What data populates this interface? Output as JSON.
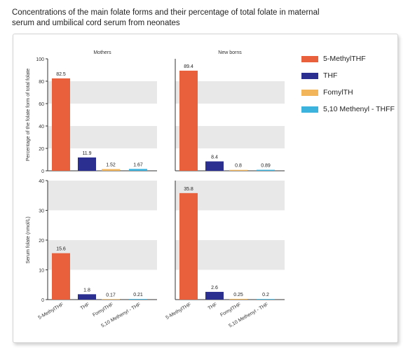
{
  "title": "Concentrations of the main folate forms and their percentage of total folate in maternal serum and umbilical cord serum from neonates",
  "chart_data": [
    {
      "type": "bar",
      "title": "Mothers",
      "ylabel": "Percentage of the folate form of total folate",
      "ylim": [
        0,
        100
      ],
      "yticks": [
        "0",
        "20",
        "40",
        "60",
        "80",
        "100"
      ],
      "categories": [
        "5-MethylTHF",
        "THF",
        "FomylTHF",
        "5,10 Methenyl - THF"
      ],
      "values": [
        82.5,
        11.9,
        1.52,
        1.67
      ],
      "value_labels": [
        "82.5",
        "11.9",
        "1.52",
        "1.67"
      ],
      "category_labels_shown": false
    },
    {
      "type": "bar",
      "title": "New borns",
      "ylim": [
        0,
        100
      ],
      "categories": [
        "5-MethylTHF",
        "THF",
        "FomylTHF",
        "5,10 Methenyl - THF"
      ],
      "values": [
        89.4,
        8.4,
        0.8,
        0.89
      ],
      "value_labels": [
        "89.4",
        "8.4",
        "0.8",
        "0.89"
      ],
      "category_labels_shown": false
    },
    {
      "type": "bar",
      "ylabel": "Serum folate  (nmol/L)",
      "ylim": [
        0,
        40
      ],
      "yticks": [
        "0",
        "10",
        "20",
        "30",
        "40"
      ],
      "categories": [
        "5-MethylTHF",
        "THF",
        "FomylTHF",
        "5,10 Methenyl - THF"
      ],
      "values": [
        15.6,
        1.8,
        0.17,
        0.21
      ],
      "value_labels": [
        "15.6",
        "1.8",
        "0.17",
        "0.21"
      ],
      "category_labels_shown": true
    },
    {
      "type": "bar",
      "ylim": [
        0,
        40
      ],
      "categories": [
        "5-MethylTHF",
        "THF",
        "FomylTHF",
        "5,10 Methenyl - THF"
      ],
      "values": [
        35.8,
        2.6,
        0.25,
        0.2
      ],
      "value_labels": [
        "35.8",
        "2.6",
        "0.25",
        "0.2"
      ],
      "category_labels_shown": true
    }
  ],
  "legend": [
    {
      "label": "5-MethylTHF",
      "color": "#e8603c"
    },
    {
      "label": "THF",
      "color": "#2b2f8f"
    },
    {
      "label": "FomylTH",
      "color": "#f2b55a"
    },
    {
      "label": "5,10 Methenyl - THFF",
      "color": "#3bb3dc"
    }
  ],
  "colors": [
    "#e8603c",
    "#2b2f8f",
    "#f2b55a",
    "#3bb3dc"
  ],
  "band_color": "#e8e8e8"
}
